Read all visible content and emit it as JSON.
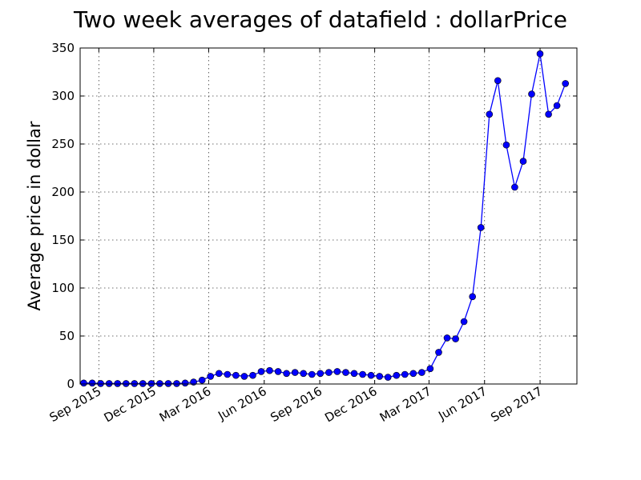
{
  "chart_data": {
    "type": "line",
    "title": "Two week averages of datafield : dollarPrice",
    "xlabel": "",
    "ylabel": "Average price in dollar",
    "ylim": [
      0,
      350
    ],
    "yticks": [
      "0",
      "50",
      "100",
      "150",
      "200",
      "250",
      "300",
      "350"
    ],
    "xlim": [
      "2015-08-01",
      "2017-11-01"
    ],
    "xticks": [
      {
        "date": "2015-09-01",
        "label": "Sep 2015"
      },
      {
        "date": "2015-12-01",
        "label": "Dec 2015"
      },
      {
        "date": "2016-03-01",
        "label": "Mar 2016"
      },
      {
        "date": "2016-06-01",
        "label": "Jun 2016"
      },
      {
        "date": "2016-09-01",
        "label": "Sep 2016"
      },
      {
        "date": "2016-12-01",
        "label": "Dec 2016"
      },
      {
        "date": "2017-03-01",
        "label": "Mar 2017"
      },
      {
        "date": "2017-06-01",
        "label": "Jun 2017"
      },
      {
        "date": "2017-09-01",
        "label": "Sep 2017"
      }
    ],
    "grid": true,
    "color": "#0000ff",
    "marker": "circle",
    "series": [
      {
        "x": [
          "2015-08-07",
          "2015-08-21",
          "2015-09-04",
          "2015-09-18",
          "2015-10-02",
          "2015-10-16",
          "2015-10-30",
          "2015-11-13",
          "2015-11-27",
          "2015-12-11",
          "2015-12-25",
          "2016-01-08",
          "2016-01-22",
          "2016-02-05",
          "2016-02-19",
          "2016-03-04",
          "2016-03-18",
          "2016-04-01",
          "2016-04-15",
          "2016-04-29",
          "2016-05-13",
          "2016-05-27",
          "2016-06-10",
          "2016-06-24",
          "2016-07-08",
          "2016-07-22",
          "2016-08-05",
          "2016-08-19",
          "2016-09-02",
          "2016-09-16",
          "2016-09-30",
          "2016-10-14",
          "2016-10-28",
          "2016-11-11",
          "2016-11-25",
          "2016-12-09",
          "2016-12-23",
          "2017-01-06",
          "2017-01-20",
          "2017-02-03",
          "2017-02-17",
          "2017-03-03",
          "2017-03-17",
          "2017-03-31",
          "2017-04-14",
          "2017-04-28",
          "2017-05-12",
          "2017-05-26",
          "2017-06-09",
          "2017-06-23",
          "2017-07-07",
          "2017-07-21",
          "2017-08-04",
          "2017-08-18",
          "2017-09-01",
          "2017-09-15",
          "2017-09-29",
          "2017-10-13"
        ],
        "y": [
          1,
          1,
          0.5,
          0.5,
          0.5,
          0.5,
          0.5,
          0.5,
          0.5,
          0.5,
          0.5,
          0.5,
          1,
          2,
          4,
          8,
          11,
          10,
          9,
          8,
          9,
          13,
          14,
          13,
          11,
          12,
          11,
          10,
          11,
          12,
          13,
          12,
          11,
          10,
          9,
          8,
          7,
          9,
          10,
          11,
          12,
          16,
          33,
          48,
          47,
          65,
          91,
          163,
          281,
          316,
          249,
          205,
          232,
          302,
          344,
          281,
          290,
          313
        ]
      }
    ]
  }
}
